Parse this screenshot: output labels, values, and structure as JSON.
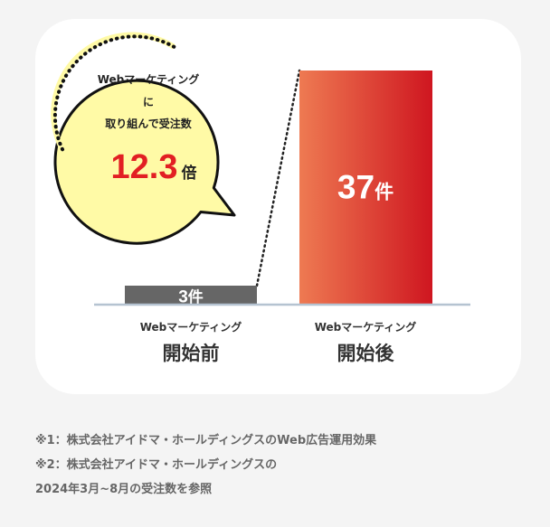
{
  "chart_data": {
    "type": "bar",
    "categories": [
      {
        "line1": "Webマーケティング",
        "line2": "開始前"
      },
      {
        "line1": "Webマーケティング",
        "line2": "開始後"
      }
    ],
    "values": [
      3,
      37
    ],
    "value_unit": "件",
    "ylim": [
      0,
      37
    ],
    "grid": false,
    "colors": {
      "before": "#666666",
      "after_start": "#ee7a52",
      "after_end": "#cf1620",
      "baseline": "#b5c3d1"
    }
  },
  "callout": {
    "line1": "Webマーケティング",
    "line2": "に",
    "line3": "取り組んで受注数",
    "multiplier_value": "12.3",
    "multiplier_unit": "倍",
    "bubble_color": "#fffaa6",
    "accent_color": "#e21f23"
  },
  "notes": [
    "※1：株式会社アイドマ・ホールディングスのWeb広告運用効果",
    "※2：株式会社アイドマ・ホールディングスの",
    "2024年3月~8月の受注数を参照"
  ]
}
